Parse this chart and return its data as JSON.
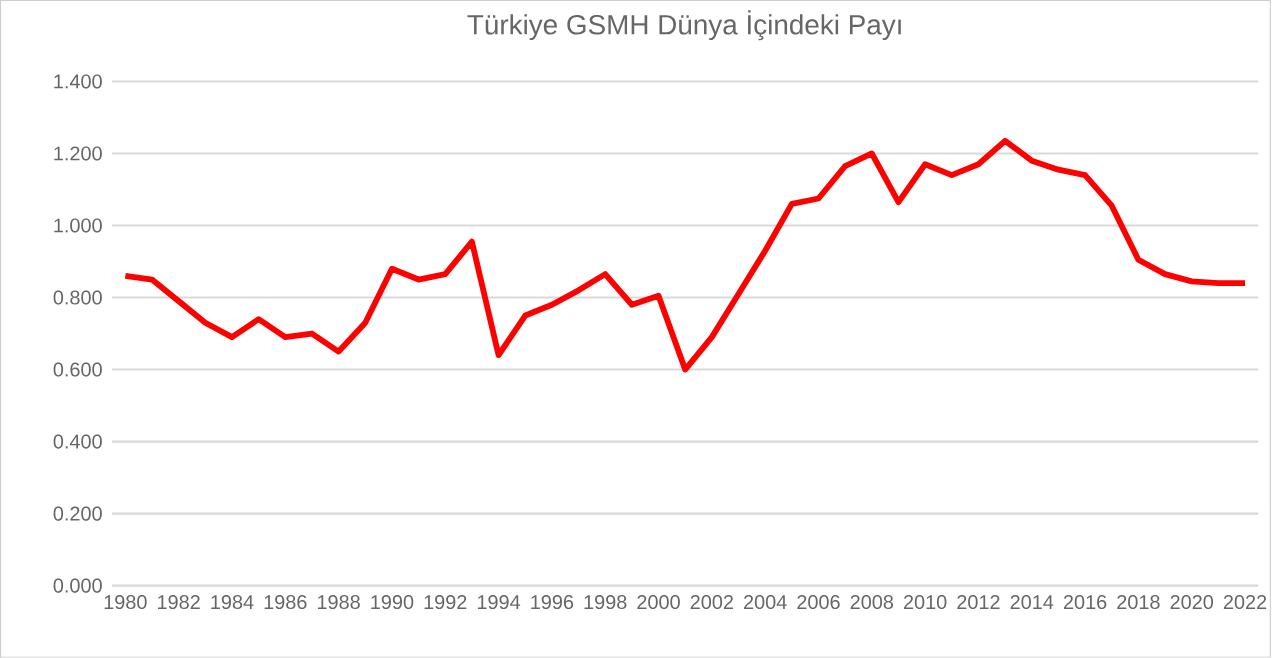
{
  "chart_data": {
    "type": "line",
    "title": "Türkiye GSMH Dünya İçindeki Payı",
    "categories": [
      "1980",
      null,
      "1982",
      null,
      "1984",
      null,
      "1986",
      null,
      "1988",
      null,
      "1990",
      null,
      "1992",
      null,
      "1994",
      null,
      "1996",
      null,
      "1998",
      null,
      "2000",
      null,
      "2002",
      null,
      "2004",
      null,
      "2006",
      null,
      "2008",
      null,
      "2010",
      null,
      "2012",
      null,
      "2014",
      null,
      "2016",
      null,
      "2018",
      null,
      "2020",
      null,
      "2022"
    ],
    "series": [
      {
        "color": "#ff0000",
        "values": [
          0.86,
          0.85,
          0.79,
          0.73,
          0.69,
          0.74,
          0.69,
          0.7,
          0.65,
          0.73,
          0.88,
          0.85,
          0.865,
          0.955,
          0.64,
          0.75,
          0.78,
          0.82,
          0.865,
          0.78,
          0.805,
          0.6,
          0.69,
          0.81,
          0.93,
          1.06,
          1.075,
          1.165,
          1.2,
          1.065,
          1.17,
          1.14,
          1.17,
          1.235,
          1.18,
          1.155,
          1.14,
          1.055,
          0.905,
          0.865,
          0.845,
          0.84,
          0.84
        ]
      }
    ],
    "ylim": [
      0,
      1.4
    ],
    "yticks": [
      {
        "value": 0,
        "label": "0.000"
      },
      {
        "value": 0.2,
        "label": "0.200"
      },
      {
        "value": 0.4,
        "label": "0.400"
      },
      {
        "value": 0.6,
        "label": "0.600"
      },
      {
        "value": 0.8,
        "label": "0.800"
      },
      {
        "value": 1.0,
        "label": "1.000"
      },
      {
        "value": 1.2,
        "label": "1.200"
      },
      {
        "value": 1.4,
        "label": "1.400"
      }
    ],
    "grid": "y",
    "marker": "none",
    "line_style": "solid"
  }
}
